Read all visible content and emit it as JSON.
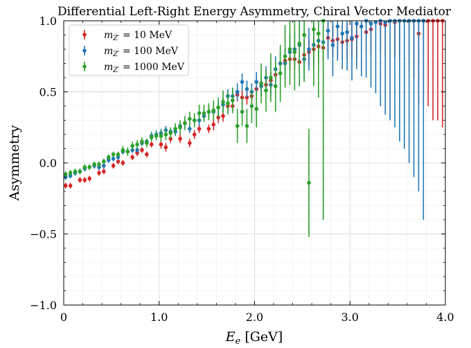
{
  "chart_data": {
    "type": "scatter",
    "title": "Differential Left-Right Energy Asymmetry, Chiral Vector Mediator",
    "xlabel": "E_e [GeV]",
    "ylabel": "Asymmetry",
    "xlim": [
      0,
      4.0
    ],
    "ylim": [
      -1.0,
      1.0
    ],
    "x_ticks": [
      0,
      1.0,
      2.0,
      3.0,
      4.0
    ],
    "x_tick_labels": [
      "0",
      "1.0",
      "2.0",
      "3.0",
      "4.0"
    ],
    "y_ticks": [
      -1.0,
      -0.5,
      0.0,
      0.5,
      1.0
    ],
    "y_tick_labels": [
      "−1.0",
      "−0.5",
      "0.0",
      "0.5",
      "1.0"
    ],
    "grid": true,
    "legend_position": "top-left",
    "series": [
      {
        "name_prefix": "m",
        "name_sub": "Z′",
        "name_value": " = 10 MeV",
        "color": "#d62728",
        "points": [
          [
            0.02,
            -0.16,
            0.02
          ],
          [
            0.07,
            -0.16,
            0.02
          ],
          [
            0.17,
            -0.12,
            0.02
          ],
          [
            0.22,
            -0.12,
            0.02
          ],
          [
            0.27,
            -0.11,
            0.02
          ],
          [
            0.37,
            -0.07,
            0.02
          ],
          [
            0.42,
            -0.06,
            0.02
          ],
          [
            0.52,
            -0.02,
            0.02
          ],
          [
            0.57,
            0.01,
            0.02
          ],
          [
            0.62,
            0.0,
            0.02
          ],
          [
            0.72,
            0.04,
            0.02
          ],
          [
            0.77,
            0.07,
            0.02
          ],
          [
            0.82,
            0.09,
            0.02
          ],
          [
            0.87,
            0.06,
            0.02
          ],
          [
            0.92,
            0.13,
            0.02
          ],
          [
            1.02,
            0.13,
            0.03
          ],
          [
            1.07,
            0.11,
            0.03
          ],
          [
            1.12,
            0.17,
            0.03
          ],
          [
            1.22,
            0.17,
            0.03
          ],
          [
            1.32,
            0.14,
            0.03
          ],
          [
            1.37,
            0.2,
            0.03
          ],
          [
            1.42,
            0.24,
            0.03
          ],
          [
            1.52,
            0.24,
            0.03
          ],
          [
            1.57,
            0.27,
            0.04
          ],
          [
            1.62,
            0.32,
            0.04
          ],
          [
            1.67,
            0.33,
            0.04
          ],
          [
            1.72,
            0.4,
            0.04
          ],
          [
            1.77,
            0.4,
            0.04
          ],
          [
            1.82,
            0.48,
            0.05
          ],
          [
            1.87,
            0.46,
            0.05
          ],
          [
            1.92,
            0.46,
            0.05
          ],
          [
            1.97,
            0.47,
            0.05
          ],
          [
            2.02,
            0.52,
            0.05
          ],
          [
            2.07,
            0.54,
            0.06
          ],
          [
            2.12,
            0.55,
            0.06
          ],
          [
            2.17,
            0.58,
            0.06
          ],
          [
            2.22,
            0.62,
            0.06
          ],
          [
            2.27,
            0.7,
            0.07
          ],
          [
            2.32,
            0.72,
            0.07
          ],
          [
            2.37,
            0.73,
            0.08
          ],
          [
            2.42,
            0.73,
            0.08
          ],
          [
            2.47,
            0.71,
            0.08
          ],
          [
            2.52,
            0.76,
            0.09
          ],
          [
            2.57,
            0.78,
            0.09
          ],
          [
            2.62,
            0.8,
            0.09
          ],
          [
            2.67,
            0.82,
            0.1
          ],
          [
            2.72,
            0.81,
            0.1
          ],
          [
            2.77,
            0.88,
            0.11
          ],
          [
            2.82,
            0.86,
            0.11
          ],
          [
            2.87,
            0.87,
            0.12
          ],
          [
            2.92,
            0.85,
            0.12
          ],
          [
            2.97,
            0.86,
            0.13
          ],
          [
            3.02,
            0.87,
            0.14
          ],
          [
            3.07,
            0.89,
            0.15
          ],
          [
            3.17,
            0.92,
            0.16
          ],
          [
            3.22,
            0.94,
            0.18
          ],
          [
            3.32,
            0.98,
            0.2
          ],
          [
            3.37,
            0.97,
            0.22
          ],
          [
            3.47,
            0.99,
            0.25
          ],
          [
            3.52,
            1.0,
            0.28
          ],
          [
            3.62,
            1.0,
            0.35
          ],
          [
            3.67,
            1.0,
            0.4
          ],
          [
            3.72,
            0.91,
            0.5
          ],
          [
            3.77,
            1.0,
            0.55
          ],
          [
            3.82,
            1.0,
            0.6
          ],
          [
            3.87,
            1.0,
            0.7
          ],
          [
            3.92,
            1.0,
            0.7
          ],
          [
            3.97,
            1.0,
            0.75
          ]
        ]
      },
      {
        "name_prefix": "m",
        "name_sub": "Z′",
        "name_value": " = 100 MeV",
        "color": "#1f77b4",
        "points": [
          [
            0.02,
            -0.1,
            0.02
          ],
          [
            0.07,
            -0.09,
            0.02
          ],
          [
            0.12,
            -0.07,
            0.02
          ],
          [
            0.17,
            -0.06,
            0.02
          ],
          [
            0.22,
            -0.04,
            0.02
          ],
          [
            0.32,
            -0.02,
            0.02
          ],
          [
            0.37,
            -0.03,
            0.02
          ],
          [
            0.42,
            -0.02,
            0.02
          ],
          [
            0.47,
            0.02,
            0.02
          ],
          [
            0.52,
            0.03,
            0.02
          ],
          [
            0.57,
            0.04,
            0.02
          ],
          [
            0.62,
            0.08,
            0.02
          ],
          [
            0.67,
            0.08,
            0.02
          ],
          [
            0.72,
            0.09,
            0.02
          ],
          [
            0.77,
            0.09,
            0.02
          ],
          [
            0.82,
            0.14,
            0.02
          ],
          [
            0.87,
            0.15,
            0.02
          ],
          [
            0.92,
            0.19,
            0.03
          ],
          [
            0.97,
            0.2,
            0.03
          ],
          [
            1.02,
            0.21,
            0.03
          ],
          [
            1.07,
            0.23,
            0.03
          ],
          [
            1.12,
            0.22,
            0.03
          ],
          [
            1.17,
            0.22,
            0.03
          ],
          [
            1.22,
            0.26,
            0.03
          ],
          [
            1.27,
            0.28,
            0.03
          ],
          [
            1.32,
            0.24,
            0.03
          ],
          [
            1.37,
            0.3,
            0.04
          ],
          [
            1.42,
            0.3,
            0.04
          ],
          [
            1.47,
            0.33,
            0.04
          ],
          [
            1.52,
            0.36,
            0.04
          ],
          [
            1.57,
            0.36,
            0.04
          ],
          [
            1.62,
            0.39,
            0.05
          ],
          [
            1.67,
            0.41,
            0.05
          ],
          [
            1.72,
            0.47,
            0.05
          ],
          [
            1.77,
            0.47,
            0.05
          ],
          [
            1.82,
            0.5,
            0.06
          ],
          [
            1.87,
            0.57,
            0.06
          ],
          [
            1.92,
            0.52,
            0.06
          ],
          [
            1.97,
            0.5,
            0.06
          ],
          [
            2.02,
            0.57,
            0.07
          ],
          [
            2.07,
            0.54,
            0.07
          ],
          [
            2.12,
            0.6,
            0.08
          ],
          [
            2.17,
            0.55,
            0.08
          ],
          [
            2.22,
            0.66,
            0.09
          ],
          [
            2.27,
            0.7,
            0.1
          ],
          [
            2.32,
            0.7,
            0.11
          ],
          [
            2.37,
            0.78,
            0.12
          ],
          [
            2.42,
            0.8,
            0.12
          ],
          [
            2.47,
            0.83,
            0.13
          ],
          [
            2.52,
            0.73,
            0.14
          ],
          [
            2.57,
            0.8,
            0.15
          ],
          [
            2.62,
            0.83,
            0.16
          ],
          [
            2.67,
            0.86,
            0.17
          ],
          [
            2.72,
            0.85,
            0.19
          ],
          [
            2.77,
            0.93,
            0.2
          ],
          [
            2.82,
            0.83,
            0.22
          ],
          [
            2.87,
            0.96,
            0.24
          ],
          [
            2.92,
            0.91,
            0.25
          ],
          [
            2.97,
            0.92,
            0.27
          ],
          [
            3.02,
            0.88,
            0.3
          ],
          [
            3.07,
            0.98,
            0.32
          ],
          [
            3.12,
            0.96,
            0.35
          ],
          [
            3.17,
            1.0,
            0.4
          ],
          [
            3.22,
            0.98,
            0.45
          ],
          [
            3.27,
            0.99,
            0.5
          ],
          [
            3.32,
            1.0,
            0.6
          ],
          [
            3.37,
            0.99,
            0.65
          ],
          [
            3.42,
            1.0,
            0.7
          ],
          [
            3.47,
            1.0,
            0.75
          ],
          [
            3.52,
            1.0,
            0.85
          ],
          [
            3.57,
            1.0,
            0.9
          ],
          [
            3.62,
            1.0,
            1.0
          ],
          [
            3.67,
            1.0,
            1.1
          ],
          [
            3.72,
            1.0,
            1.2
          ],
          [
            3.77,
            1.0,
            1.4
          ]
        ]
      },
      {
        "name_prefix": "m",
        "name_sub": "Z′",
        "name_value": " = 1000 MeV",
        "color": "#2ca02c",
        "points": [
          [
            0.02,
            -0.08,
            0.02
          ],
          [
            0.07,
            -0.07,
            0.02
          ],
          [
            0.12,
            -0.06,
            0.02
          ],
          [
            0.17,
            -0.06,
            0.02
          ],
          [
            0.22,
            -0.03,
            0.02
          ],
          [
            0.27,
            -0.03,
            0.02
          ],
          [
            0.32,
            -0.01,
            0.02
          ],
          [
            0.37,
            -0.01,
            0.02
          ],
          [
            0.42,
            0.01,
            0.02
          ],
          [
            0.47,
            0.04,
            0.02
          ],
          [
            0.52,
            0.06,
            0.02
          ],
          [
            0.57,
            0.06,
            0.02
          ],
          [
            0.62,
            0.09,
            0.03
          ],
          [
            0.67,
            0.08,
            0.03
          ],
          [
            0.72,
            0.12,
            0.03
          ],
          [
            0.77,
            0.13,
            0.03
          ],
          [
            0.82,
            0.15,
            0.03
          ],
          [
            0.87,
            0.14,
            0.03
          ],
          [
            0.92,
            0.18,
            0.03
          ],
          [
            0.97,
            0.19,
            0.03
          ],
          [
            1.02,
            0.19,
            0.04
          ],
          [
            1.07,
            0.2,
            0.04
          ],
          [
            1.12,
            0.21,
            0.04
          ],
          [
            1.17,
            0.24,
            0.04
          ],
          [
            1.22,
            0.25,
            0.05
          ],
          [
            1.27,
            0.28,
            0.05
          ],
          [
            1.32,
            0.31,
            0.05
          ],
          [
            1.37,
            0.3,
            0.05
          ],
          [
            1.42,
            0.35,
            0.06
          ],
          [
            1.47,
            0.35,
            0.06
          ],
          [
            1.52,
            0.36,
            0.06
          ],
          [
            1.57,
            0.37,
            0.07
          ],
          [
            1.62,
            0.39,
            0.07
          ],
          [
            1.67,
            0.43,
            0.08
          ],
          [
            1.72,
            0.42,
            0.08
          ],
          [
            1.77,
            0.44,
            0.09
          ],
          [
            1.82,
            0.26,
            0.12
          ],
          [
            1.87,
            0.36,
            0.1
          ],
          [
            1.92,
            0.26,
            0.12
          ],
          [
            1.97,
            0.4,
            0.12
          ],
          [
            2.02,
            0.38,
            0.13
          ],
          [
            2.07,
            0.56,
            0.14
          ],
          [
            2.12,
            0.51,
            0.15
          ],
          [
            2.17,
            0.6,
            0.17
          ],
          [
            2.22,
            0.54,
            0.18
          ],
          [
            2.27,
            0.63,
            0.2
          ],
          [
            2.32,
            0.75,
            0.22
          ],
          [
            2.37,
            0.8,
            0.25
          ],
          [
            2.42,
            0.78,
            0.27
          ],
          [
            2.47,
            0.84,
            0.3
          ],
          [
            2.52,
            0.9,
            0.33
          ],
          [
            2.57,
            -0.14,
            0.38
          ],
          [
            2.62,
            0.94,
            0.4
          ],
          [
            2.67,
            0.91,
            0.45
          ],
          [
            2.72,
            1.0,
            1.4
          ]
        ]
      }
    ]
  }
}
